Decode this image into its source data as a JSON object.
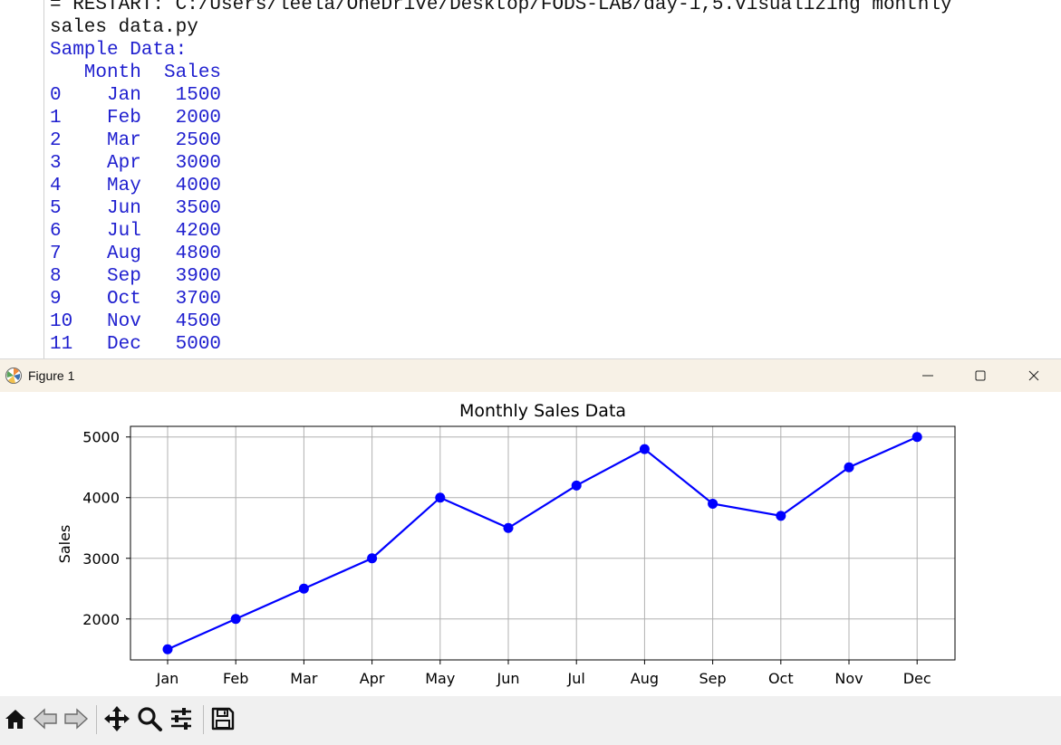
{
  "shell": {
    "lines": [
      {
        "text": "= RESTART: C:/Users/leela/OneDrive/Desktop/FODS-LAB/day-1,5.visualizing monthly",
        "style": "black"
      },
      {
        "text": "sales data.py",
        "style": "black"
      },
      {
        "text": "Sample Data:",
        "style": "blue"
      },
      {
        "text": "   Month  Sales",
        "style": "blue"
      },
      {
        "text": "0    Jan   1500",
        "style": "blue"
      },
      {
        "text": "1    Feb   2000",
        "style": "blue"
      },
      {
        "text": "2    Mar   2500",
        "style": "blue"
      },
      {
        "text": "3    Apr   3000",
        "style": "blue"
      },
      {
        "text": "4    May   4000",
        "style": "blue"
      },
      {
        "text": "5    Jun   3500",
        "style": "blue"
      },
      {
        "text": "6    Jul   4200",
        "style": "blue"
      },
      {
        "text": "7    Aug   4800",
        "style": "blue"
      },
      {
        "text": "8    Sep   3900",
        "style": "blue"
      },
      {
        "text": "9    Oct   3700",
        "style": "blue"
      },
      {
        "text": "10   Nov   4500",
        "style": "blue"
      },
      {
        "text": "11   Dec   5000",
        "style": "blue"
      }
    ]
  },
  "window": {
    "title": "Figure 1",
    "app_icon": "matplotlib-icon",
    "controls": [
      "minimize-icon",
      "maximize-icon",
      "close-icon"
    ]
  },
  "toolbar": {
    "buttons": [
      "home-icon",
      "back-arrow-icon",
      "forward-arrow-icon",
      "pan-move-icon",
      "zoom-magnifier-icon",
      "configure-subplots-icon",
      "save-floppy-icon"
    ]
  },
  "chart_data": {
    "type": "line",
    "title": "Monthly Sales Data",
    "xlabel": "",
    "ylabel": "Sales",
    "categories": [
      "Jan",
      "Feb",
      "Mar",
      "Apr",
      "May",
      "Jun",
      "Jul",
      "Aug",
      "Sep",
      "Oct",
      "Nov",
      "Dec"
    ],
    "series": [
      {
        "values": [
          1500,
          2000,
          2500,
          3000,
          4000,
          3500,
          4200,
          4800,
          3900,
          3700,
          4500,
          5000
        ],
        "color": "#0000ff",
        "marker": "o"
      }
    ],
    "yticks": [
      2000,
      3000,
      4000,
      5000
    ],
    "ylim": [
      1325,
      5175
    ],
    "grid": true
  }
}
